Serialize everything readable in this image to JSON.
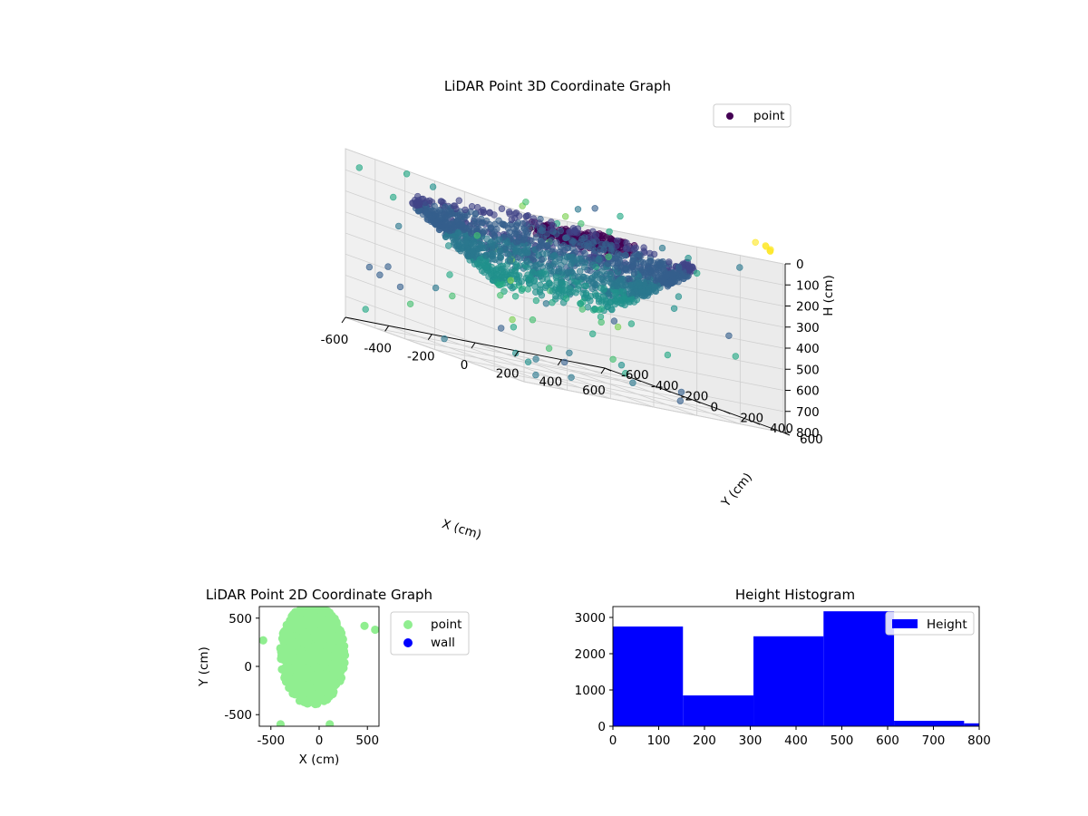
{
  "chart_data": [
    {
      "type": "scatter",
      "title": "LiDAR Point 3D Coordinate Graph",
      "xlabel": "X (cm)",
      "ylabel": "Y (cm)",
      "zlabel": "H (cm)",
      "xlim": [
        -600,
        600
      ],
      "ylim": [
        -600,
        600
      ],
      "zlim": [
        800,
        0
      ],
      "x_ticks": [
        "-600",
        "-400",
        "-200",
        "0",
        "200",
        "400",
        "600"
      ],
      "y_ticks": [
        "-600",
        "-400",
        "-200",
        "0",
        "200",
        "400",
        "600"
      ],
      "z_ticks": [
        "0",
        "100",
        "200",
        "300",
        "400",
        "500",
        "600",
        "700",
        "800"
      ],
      "legend": [
        "point"
      ],
      "legend_loc": "top-right",
      "colormap": "viridis",
      "grid": true
    },
    {
      "type": "scatter",
      "title": "LiDAR Point 2D Coordinate Graph",
      "xlabel": "X (cm)",
      "ylabel": "Y (cm)",
      "xlim": [
        -620,
        620
      ],
      "ylim": [
        -620,
        620
      ],
      "x_ticks": [
        "-500",
        "0",
        "500"
      ],
      "y_ticks": [
        "-500",
        "0",
        "500"
      ],
      "series": [
        {
          "name": "point",
          "color": "#90ee90"
        },
        {
          "name": "wall",
          "color": "#0000ff"
        }
      ],
      "legend_loc": "outside-right"
    },
    {
      "type": "bar",
      "title": "Height Histogram",
      "xlim": [
        0,
        800
      ],
      "ylim": [
        0,
        3300
      ],
      "x_ticks": [
        "0",
        "100",
        "200",
        "300",
        "400",
        "500",
        "600",
        "700",
        "800"
      ],
      "y_ticks": [
        "0",
        "1000",
        "2000",
        "3000"
      ],
      "bin_edges": [
        0,
        153,
        307,
        460,
        614,
        767,
        800
      ],
      "values": [
        2750,
        850,
        2480,
        3170,
        150,
        80
      ],
      "series": [
        {
          "name": "Height",
          "color": "#0000ff"
        }
      ],
      "legend_loc": "top-right"
    }
  ]
}
